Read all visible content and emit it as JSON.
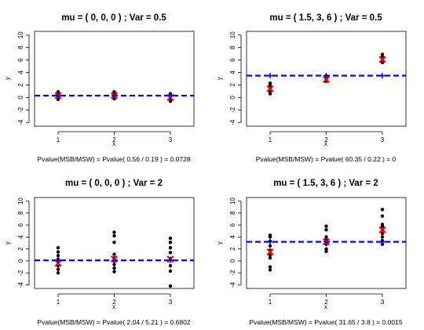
{
  "chart_data": [
    {
      "type": "scatter",
      "title": "mu = ( 0, 0, 0 ) ; Var = 0.5",
      "xlabel": "x",
      "ylabel": "y",
      "xticks": [
        "1",
        "2",
        "3"
      ],
      "yticks": [
        "-4",
        "-2",
        "0",
        "2",
        "4",
        "6",
        "8",
        "10"
      ],
      "ylim": [
        -4.6,
        10.6
      ],
      "xlim": [
        0.58,
        3.42
      ],
      "grand_mean": 0.3,
      "groups": [
        {
          "x": 1,
          "points": [
            -0.3,
            0.0,
            0.3,
            0.6,
            0.9
          ],
          "mean": 0.3
        },
        {
          "x": 2,
          "points": [
            -0.2,
            0.1,
            0.3,
            0.6,
            0.9
          ],
          "mean": 0.3
        },
        {
          "x": 3,
          "points": [
            -0.6,
            -0.3,
            0.0,
            0.3,
            0.6
          ],
          "mean": 0.0
        }
      ],
      "pvalue_text": "Pvalue(MSB/MSW) = Pvalue( 0.56 / 0.19 ) = 0.0728"
    },
    {
      "type": "scatter",
      "title": "mu = ( 1.5, 3, 6 ) ; Var = 0.5",
      "xlabel": "x",
      "ylabel": "y",
      "xticks": [
        "1",
        "2",
        "3"
      ],
      "yticks": [
        "-4",
        "-2",
        "0",
        "2",
        "4",
        "6",
        "8",
        "10"
      ],
      "ylim": [
        -4.6,
        10.6
      ],
      "xlim": [
        0.58,
        3.42
      ],
      "grand_mean": 3.5,
      "groups": [
        {
          "x": 1,
          "points": [
            0.6,
            1.0,
            1.4,
            1.9,
            2.3
          ],
          "mean": 1.4
        },
        {
          "x": 2,
          "points": [
            2.6,
            2.9,
            3.1,
            3.3,
            3.5
          ],
          "mean": 2.9
        },
        {
          "x": 3,
          "points": [
            5.6,
            5.9,
            6.1,
            6.5,
            6.9
          ],
          "mean": 6.1
        }
      ],
      "pvalue_text": "Pvalue(MSB/MSW) = Pvalue( 60.35 / 0.22 ) = 0"
    },
    {
      "type": "scatter",
      "title": "mu = ( 0, 0, 0 ) ; Var = 2",
      "xlabel": "x",
      "ylabel": "y",
      "xticks": [
        "1",
        "2",
        "3"
      ],
      "yticks": [
        "-4",
        "-2",
        "0",
        "2",
        "4",
        "6",
        "8",
        "10"
      ],
      "ylim": [
        -4.6,
        10.6
      ],
      "xlim": [
        0.58,
        3.42
      ],
      "grand_mean": 0.1,
      "groups": [
        {
          "x": 1,
          "points": [
            -2.0,
            -1.4,
            -0.8,
            -0.2,
            0.3,
            0.9,
            1.5,
            2.2
          ],
          "mean": -0.4
        },
        {
          "x": 2,
          "points": [
            -1.8,
            -1.2,
            -0.6,
            0.0,
            0.5,
            1.1,
            3.1,
            4.2,
            4.8
          ],
          "mean": 0.3
        },
        {
          "x": 3,
          "points": [
            -4.2,
            -1.7,
            -0.8,
            0.4,
            1.4,
            2.2,
            3.1,
            3.8
          ],
          "mean": 0.3
        }
      ],
      "pvalue_text": "Pvalue(MSB/MSW) = Pvalue( 2.04 / 5.21 ) = 0.6802"
    },
    {
      "type": "scatter",
      "title": "mu = ( 1.5, 3, 6 ) ; Var = 2",
      "xlabel": "x",
      "ylabel": "y",
      "xticks": [
        "1",
        "2",
        "3"
      ],
      "yticks": [
        "-4",
        "-2",
        "0",
        "2",
        "4",
        "6",
        "8",
        "10"
      ],
      "ylim": [
        -4.6,
        10.6
      ],
      "xlim": [
        0.58,
        3.42
      ],
      "grand_mean": 3.2,
      "groups": [
        {
          "x": 1,
          "points": [
            -1.5,
            -1.0,
            0.5,
            1.0,
            1.8,
            2.5,
            3.3,
            4.0,
            4.3
          ],
          "mean": 1.5
        },
        {
          "x": 2,
          "points": [
            1.6,
            2.0,
            2.8,
            3.2,
            3.6,
            4.0,
            5.2,
            5.8
          ],
          "mean": 3.2
        },
        {
          "x": 3,
          "points": [
            2.8,
            3.4,
            4.0,
            4.6,
            5.2,
            5.8,
            6.1,
            7.5,
            8.6
          ],
          "mean": 5.2
        }
      ],
      "pvalue_text": "Pvalue(MSB/MSW) = Pvalue( 31.65 / 3.8 ) = 0.0015"
    }
  ],
  "colors": {
    "points": "#000000",
    "group_mean_marker": "#ff0000",
    "grand_mean_marker": "#0000ff",
    "grand_mean_line": "#0000ff"
  }
}
